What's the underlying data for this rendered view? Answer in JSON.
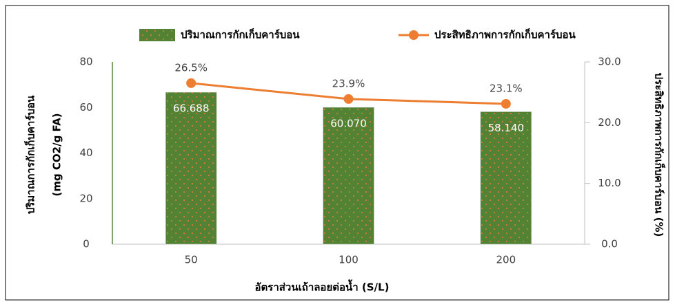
{
  "chart_data": {
    "type": "bar-line",
    "categories": [
      "50",
      "100",
      "200"
    ],
    "series": [
      {
        "name": "ปริมาณการกักเก็บคาร์บอน",
        "type": "bar",
        "color": "#548235",
        "dot_color": "#ed7d31",
        "values": [
          66.688,
          60.07,
          58.14
        ],
        "value_labels": [
          "66.688",
          "60.070",
          "58.140"
        ]
      },
      {
        "name": "ประสิทธิภาพการกักเก็บคาร์บอน",
        "type": "line",
        "axis": "y2",
        "color": "#ed7d31",
        "values": [
          26.5,
          23.9,
          23.1
        ],
        "value_labels": [
          "26.5%",
          "23.9%",
          "23.1%"
        ]
      }
    ],
    "ylim": [
      0,
      80
    ],
    "yticks": [
      0,
      20,
      40,
      60,
      80
    ],
    "y2lim": [
      0,
      30
    ],
    "y2ticks": [
      {
        "value": 0,
        "label": "0.0"
      },
      {
        "value": 10,
        "label": "10.0"
      },
      {
        "value": 20,
        "label": "20.0"
      },
      {
        "value": 30,
        "label": "30.0"
      }
    ],
    "y_label": [
      "ปริมาณการกักเก็บคาร์บอน",
      "(mg CO2/g FA)"
    ],
    "y2_label": "ประสิทธิภาพการกักเก็บคาร์บอน (%)",
    "x_label": "อัตราส่วนเถ้าลอยต่อน้ำ (S/L)"
  }
}
